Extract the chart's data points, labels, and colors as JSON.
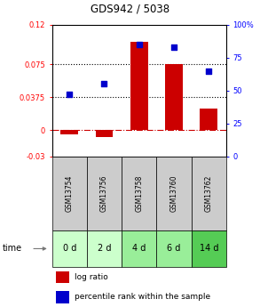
{
  "title": "GDS942 / 5038",
  "samples": [
    "GSM13754",
    "GSM13756",
    "GSM13758",
    "GSM13760",
    "GSM13762"
  ],
  "time_labels": [
    "0 d",
    "2 d",
    "4 d",
    "6 d",
    "14 d"
  ],
  "log_ratio": [
    -0.005,
    -0.008,
    0.1,
    0.075,
    0.025
  ],
  "percentile_rank": [
    47,
    55,
    85,
    83,
    65
  ],
  "bar_color": "#cc0000",
  "dot_color": "#0000cc",
  "ylim_left": [
    -0.03,
    0.12
  ],
  "ylim_right": [
    0,
    100
  ],
  "yticks_left": [
    -0.03,
    0,
    0.0375,
    0.075,
    0.12
  ],
  "ytick_labels_left": [
    "-0.03",
    "0",
    "0.0375",
    "0.075",
    "0.12"
  ],
  "yticks_right": [
    0,
    25,
    50,
    75,
    100
  ],
  "ytick_labels_right": [
    "0",
    "25",
    "50",
    "75",
    "100%"
  ],
  "hlines": [
    0.075,
    0.0375
  ],
  "zero_line": 0.0,
  "gsm_bg_color": "#cccccc",
  "time_bg_colors": [
    "#ccffcc",
    "#ccffcc",
    "#99ee99",
    "#99ee99",
    "#55cc55"
  ],
  "legend_red_label": "log ratio",
  "legend_blue_label": "percentile rank within the sample"
}
